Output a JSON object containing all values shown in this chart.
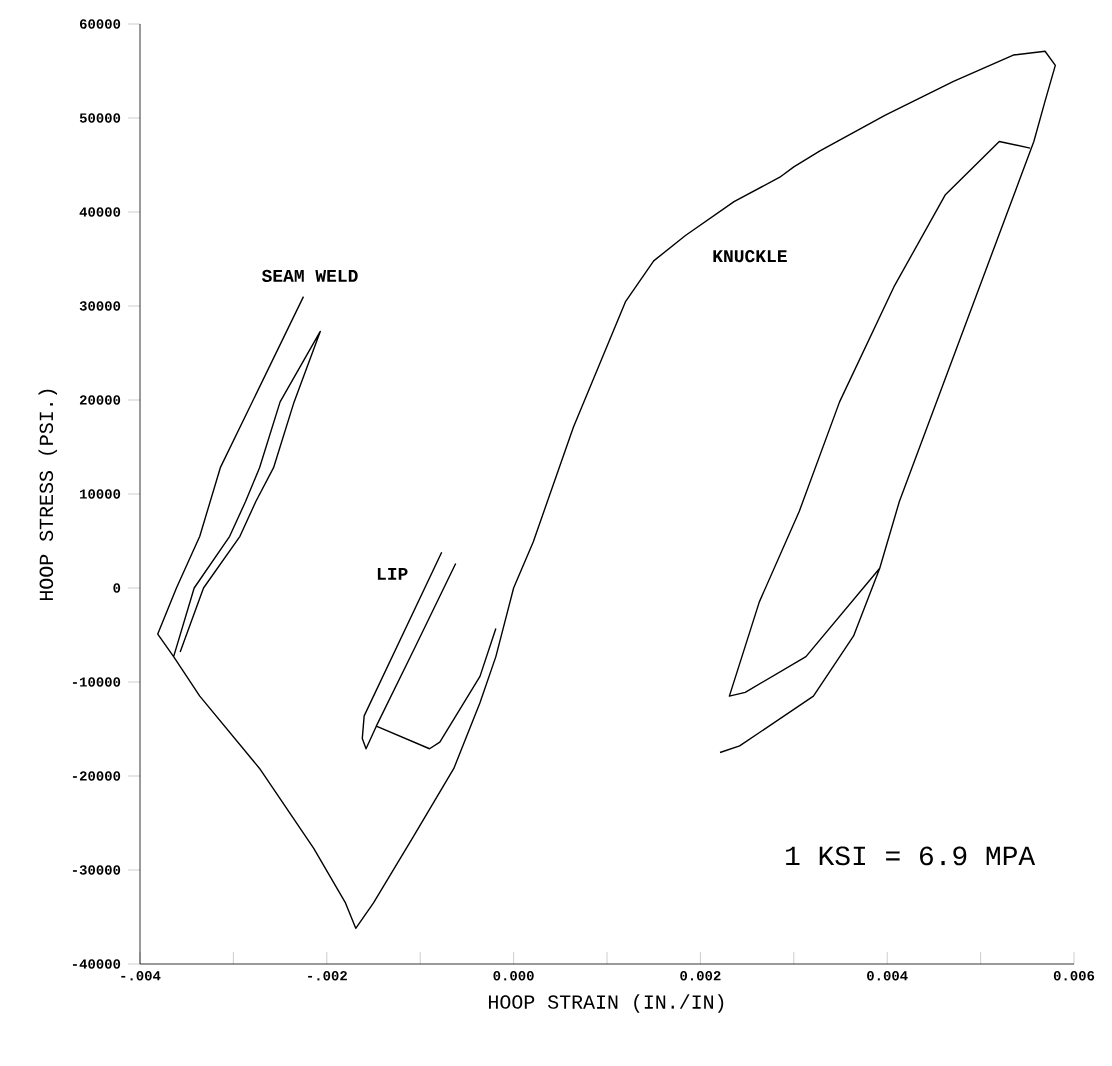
{
  "chart_data": {
    "type": "line",
    "xlabel": "HOOP STRAIN (IN./IN)",
    "ylabel": "HOOP STRESS (PSI.)",
    "xlim": [
      -0.004,
      0.006
    ],
    "ylim": [
      -40000,
      60000
    ],
    "xticks": [
      {
        "value": -0.004,
        "label": "-.004"
      },
      {
        "value": -0.003,
        "label": null
      },
      {
        "value": -0.002,
        "label": "-.002"
      },
      {
        "value": -0.001,
        "label": null
      },
      {
        "value": 0,
        "label": "0.000"
      },
      {
        "value": 0.001,
        "label": null
      },
      {
        "value": 0.002,
        "label": "0.002"
      },
      {
        "value": 0.003,
        "label": null
      },
      {
        "value": 0.004,
        "label": "0.004"
      },
      {
        "value": 0.005,
        "label": null
      },
      {
        "value": 0.006,
        "label": "0.006"
      }
    ],
    "yticks": [
      -40000,
      -30000,
      -20000,
      -10000,
      0,
      10000,
      20000,
      30000,
      40000,
      50000,
      60000
    ],
    "series": [
      {
        "color": "#000000",
        "x": [
          -0.00225,
          -0.00314,
          -0.00336,
          -0.00361,
          -0.00381,
          -0.00364,
          -0.00342,
          -0.00304,
          -0.00287,
          -0.00272,
          -0.0025,
          -0.00207,
          -0.00235,
          -0.00257,
          -0.00276,
          -0.00293,
          -0.00332,
          -0.00357,
          null,
          -0.00364,
          -0.00336,
          -0.00272,
          -0.00214,
          -0.0018,
          -0.00169,
          -0.0015,
          -0.00107,
          -0.00064,
          -0.00036,
          -0.00019,
          0.0,
          0.00021,
          0.00064,
          0.0012,
          0.0015,
          0.00184,
          0.00236,
          0.00285,
          0.003,
          0.00328,
          0.00398,
          0.00471,
          0.00535,
          0.00569,
          0.0058,
          0.00569,
          0.00557,
          0.00413,
          0.00392,
          0.00364,
          0.00321,
          0.00242,
          0.00221,
          null,
          0.00392,
          0.00313,
          0.00248,
          0.00231,
          0.00263,
          0.00306,
          0.00349,
          0.00407,
          0.00462,
          0.0052,
          0.00553,
          null,
          -0.00077,
          -0.0016,
          -0.00162,
          -0.00158,
          -0.00147,
          -0.00105,
          -0.00062,
          null,
          -0.00019,
          -0.00036,
          -0.00079,
          -0.0009,
          -0.00147
        ],
        "values": [
          31000,
          12800,
          5500,
          0,
          -4900,
          -7300,
          0,
          5500,
          9200,
          12800,
          19800,
          27300,
          19800,
          12800,
          9200,
          5500,
          0,
          -6800,
          null,
          -7300,
          -11500,
          -19200,
          -27700,
          -33500,
          -36200,
          -33500,
          -26400,
          -19200,
          -12200,
          -7300,
          0,
          4900,
          17100,
          30500,
          34800,
          37500,
          41100,
          43700,
          44800,
          46500,
          50300,
          53900,
          56700,
          57100,
          55600,
          51800,
          47500,
          9200,
          2100,
          -5100,
          -11500,
          -16800,
          -17500,
          null,
          2100,
          -7300,
          -11100,
          -11500,
          -1500,
          8200,
          19800,
          32000,
          41800,
          47500,
          46800,
          null,
          3800,
          -13600,
          -16000,
          -17100,
          -14700,
          -6200,
          2600,
          null,
          -4300,
          -9400,
          -16400,
          -17100,
          -14700
        ]
      }
    ],
    "annotations": [
      "SEAM WELD",
      "LIP",
      "KNUCKLE",
      "1 KSI = 6.9 MPA"
    ]
  }
}
